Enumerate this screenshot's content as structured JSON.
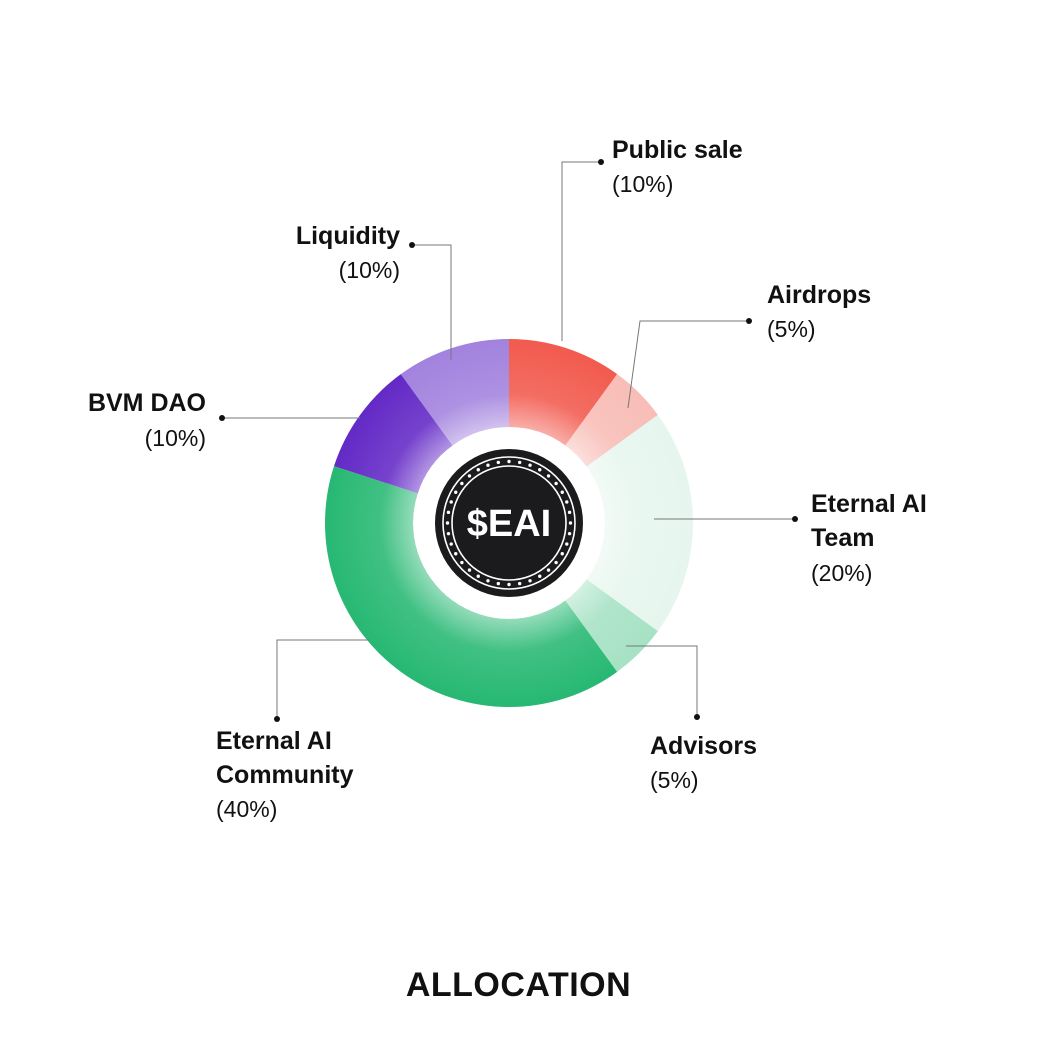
{
  "chart_data": {
    "type": "pie",
    "title": "ALLOCATION",
    "center_label": "$EAI",
    "slices": [
      {
        "name": "Public sale",
        "value": 10,
        "label": "(10%)",
        "color": "#F25A4E"
      },
      {
        "name": "Airdrops",
        "value": 5,
        "label": "(5%)",
        "color": "#F8BDB6"
      },
      {
        "name": "Eternal AI Team",
        "value": 20,
        "label": "(20%)",
        "color": "#E6F6EE"
      },
      {
        "name": "Advisors",
        "value": 5,
        "label": "(5%)",
        "color": "#A6E2C4"
      },
      {
        "name": "Eternal AI Community",
        "value": 40,
        "label": "(40%)",
        "color": "#27B873"
      },
      {
        "name": "BVM DAO",
        "value": 10,
        "label": "(10%)",
        "color": "#6329C6"
      },
      {
        "name": "Liquidity",
        "value": 10,
        "label": "(10%)",
        "color": "#A282DE"
      }
    ]
  }
}
